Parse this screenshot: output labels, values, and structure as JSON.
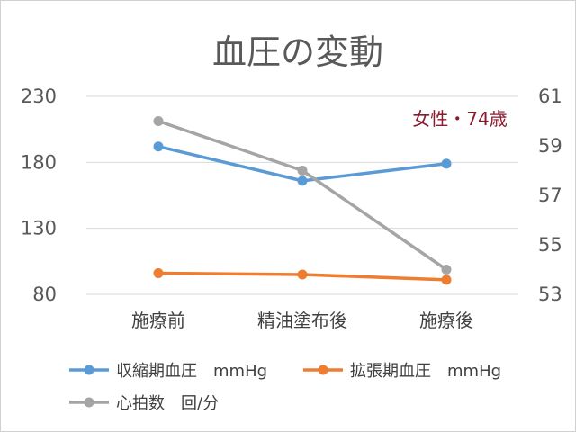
{
  "chart_data": {
    "type": "line",
    "title": "血圧の変動",
    "annotation": "女性・74歳",
    "categories": [
      "施療前",
      "精油塗布後",
      "施療後"
    ],
    "left_axis": {
      "ylim": [
        80,
        230
      ],
      "ticks": [
        "80",
        "130",
        "180",
        "230"
      ]
    },
    "right_axis": {
      "ylim": [
        53,
        61
      ],
      "ticks": [
        "53",
        "55",
        "57",
        "59",
        "61"
      ]
    },
    "grid": true,
    "legend_position": "bottom",
    "series": [
      {
        "name": "収縮期血圧　mmHg",
        "axis": "left",
        "color": "#5b9bd5",
        "values": [
          192,
          166,
          179
        ]
      },
      {
        "name": "拡張期血圧　mmHg",
        "axis": "left",
        "color": "#ed7d31",
        "values": [
          96,
          95,
          91
        ]
      },
      {
        "name": "心拍数　回/分",
        "axis": "right",
        "color": "#a5a5a5",
        "values": [
          60,
          58,
          54
        ]
      }
    ]
  }
}
